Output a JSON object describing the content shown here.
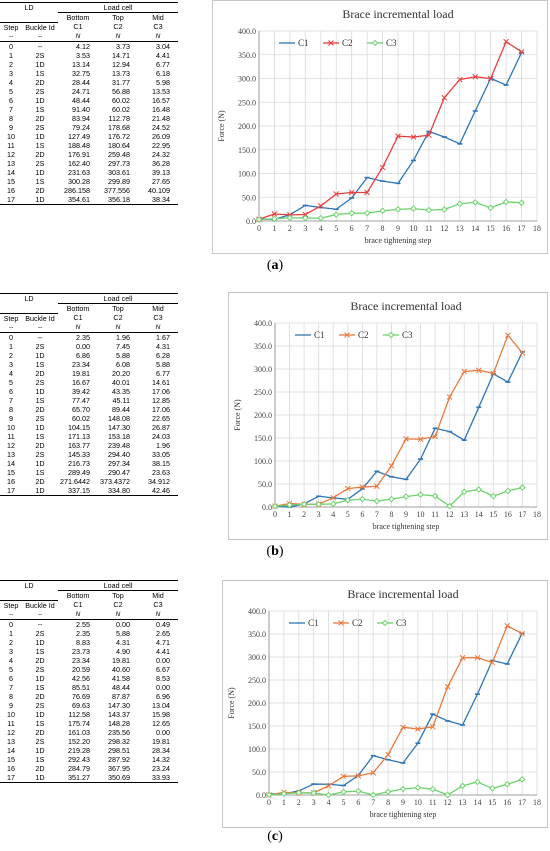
{
  "panels": [
    {
      "caption_open": "(",
      "caption_letter": "a",
      "caption_close": ")",
      "table": {
        "corner_label": "LD",
        "group_label": "Load cell",
        "headers_row1": [
          "",
          "",
          "Bottom",
          "Top",
          "Mid"
        ],
        "headers_row2": [
          "Step",
          "Buckle Id",
          "C1",
          "C2",
          "C3"
        ],
        "units": [
          "--",
          "--",
          "N",
          "N",
          "N"
        ],
        "rows": [
          [
            "0",
            "--",
            "4.12",
            "3.73",
            "3.04"
          ],
          [
            "1",
            "2S",
            "3.53",
            "14.71",
            "4.41"
          ],
          [
            "2",
            "1D",
            "13.14",
            "12.94",
            "6.77"
          ],
          [
            "3",
            "1S",
            "32.75",
            "13.73",
            "6.18"
          ],
          [
            "4",
            "2D",
            "28.44",
            "31.77",
            "5.98"
          ],
          [
            "5",
            "2S",
            "24.71",
            "56.88",
            "13.53"
          ],
          [
            "6",
            "1D",
            "48.44",
            "60.02",
            "16.57"
          ],
          [
            "7",
            "1S",
            "91.40",
            "60.02",
            "16.48"
          ],
          [
            "8",
            "2D",
            "83.94",
            "112.78",
            "21.48"
          ],
          [
            "9",
            "2S",
            "79.24",
            "178.68",
            "24.52"
          ],
          [
            "10",
            "1D",
            "127.49",
            "176.72",
            "26.09"
          ],
          [
            "11",
            "1S",
            "188.48",
            "180.64",
            "22.95"
          ],
          [
            "12",
            "2D",
            "176.91",
            "259.48",
            "24.32"
          ],
          [
            "13",
            "2S",
            "162.40",
            "297.73",
            "36.28"
          ],
          [
            "14",
            "1D",
            "231.63",
            "303.61",
            "39.13"
          ],
          [
            "15",
            "1S",
            "300.28",
            "299.89",
            "27.65"
          ],
          [
            "16",
            "2D",
            "286.158",
            "377.556",
            "40.109"
          ],
          [
            "17",
            "1D",
            "354.61",
            "356.18",
            "38.34"
          ]
        ]
      },
      "chart_data": {
        "type": "line",
        "title": "Brace incremental load",
        "xlabel": "brace tightening  step",
        "ylabel": "Force (N)",
        "x": [
          0,
          1,
          2,
          3,
          4,
          5,
          6,
          7,
          8,
          9,
          10,
          11,
          12,
          13,
          14,
          15,
          16,
          17
        ],
        "xlim": [
          0,
          18
        ],
        "ylim": [
          0,
          400
        ],
        "yticks": [
          "0.0",
          "50.0",
          "100.0",
          "150.0",
          "200.0",
          "250.0",
          "300.0",
          "350.0",
          "400.0"
        ],
        "xticks": [
          "0",
          "1",
          "2",
          "3",
          "4",
          "5",
          "6",
          "7",
          "8",
          "9",
          "10",
          "11",
          "12",
          "13",
          "14",
          "15",
          "16",
          "17",
          "18"
        ],
        "grid": true,
        "legend_position": "top-left",
        "series": [
          {
            "name": "C1",
            "color": "#2e75b6",
            "marker": "dash",
            "values": [
              4.12,
              3.53,
              13.14,
              32.75,
              28.44,
              24.71,
              48.44,
              91.4,
              83.94,
              79.24,
              127.49,
              188.48,
              176.91,
              162.4,
              231.63,
              300.28,
              286.158,
              354.61
            ]
          },
          {
            "name": "C2",
            "color": "#e83e3e",
            "marker": "x",
            "values": [
              3.73,
              14.71,
              12.94,
              13.73,
              31.77,
              56.88,
              60.02,
              60.02,
              112.78,
              178.68,
              176.72,
              180.64,
              259.48,
              297.73,
              303.61,
              299.89,
              377.556,
              356.18
            ]
          },
          {
            "name": "C3",
            "color": "#6cd46c",
            "marker": "diamond",
            "values": [
              3.04,
              4.41,
              6.77,
              6.18,
              5.98,
              13.53,
              16.57,
              16.48,
              21.48,
              24.52,
              26.09,
              22.95,
              24.32,
              36.28,
              39.13,
              27.65,
              40.109,
              38.34
            ]
          }
        ]
      }
    },
    {
      "caption_open": "(",
      "caption_letter": "b",
      "caption_close": ")",
      "table": {
        "corner_label": "LD",
        "group_label": "Load cell",
        "headers_row1": [
          "",
          "",
          "Bottom",
          "Top",
          "Mid"
        ],
        "headers_row2": [
          "Step",
          "Buckle Id",
          "C1",
          "C2",
          "C3"
        ],
        "units": [
          "--",
          "--",
          "N",
          "N",
          "N"
        ],
        "rows": [
          [
            "0",
            "--",
            "2.35",
            "1.96",
            "1.67"
          ],
          [
            "1",
            "2S",
            "0.00",
            "7.45",
            "4.31"
          ],
          [
            "2",
            "1D",
            "6.86",
            "5.88",
            "6.28"
          ],
          [
            "3",
            "1S",
            "23.34",
            "6.08",
            "5.88"
          ],
          [
            "4",
            "2D",
            "19.81",
            "20.20",
            "6.77"
          ],
          [
            "5",
            "2S",
            "16.67",
            "40.01",
            "14.61"
          ],
          [
            "6",
            "1D",
            "39.42",
            "43.35",
            "17.06"
          ],
          [
            "7",
            "1S",
            "77.47",
            "45.11",
            "12.85"
          ],
          [
            "8",
            "2D",
            "65.70",
            "89.44",
            "17.06"
          ],
          [
            "9",
            "2S",
            "60.02",
            "148.08",
            "22.65"
          ],
          [
            "10",
            "1D",
            "104.15",
            "147.30",
            "26.87"
          ],
          [
            "11",
            "1S",
            "171.13",
            "153.18",
            "24.03"
          ],
          [
            "12",
            "2D",
            "163.77",
            "239.48",
            "1.96"
          ],
          [
            "13",
            "2S",
            "145.33",
            "294.40",
            "33.05"
          ],
          [
            "14",
            "1D",
            "216.73",
            "297.34",
            "38.15"
          ],
          [
            "15",
            "1S",
            "289.49",
            "290.47",
            "23.63"
          ],
          [
            "16",
            "2D",
            "271.6442",
            "373.4372",
            "34.912"
          ],
          [
            "17",
            "1D",
            "337.15",
            "334.80",
            "42.46"
          ]
        ]
      },
      "chart_data": {
        "type": "line",
        "title": "Brace incremental load",
        "xlabel": "brace tightening  step",
        "ylabel": "Force (N)",
        "x": [
          0,
          1,
          2,
          3,
          4,
          5,
          6,
          7,
          8,
          9,
          10,
          11,
          12,
          13,
          14,
          15,
          16,
          17
        ],
        "xlim": [
          0,
          18
        ],
        "ylim": [
          0,
          400
        ],
        "yticks": [
          "0.0",
          "50.0",
          "100.0",
          "150.0",
          "200.0",
          "250.0",
          "300.0",
          "350.0",
          "400.0"
        ],
        "xticks": [
          "0",
          "1",
          "2",
          "3",
          "4",
          "5",
          "6",
          "7",
          "8",
          "9",
          "10",
          "11",
          "12",
          "13",
          "14",
          "15",
          "16",
          "17",
          "18"
        ],
        "grid": true,
        "legend_position": "top-left",
        "series": [
          {
            "name": "C1",
            "color": "#2e75b6",
            "marker": "dash",
            "values": [
              2.35,
              0.0,
              6.86,
              23.34,
              19.81,
              16.67,
              39.42,
              77.47,
              65.7,
              60.02,
              104.15,
              171.13,
              163.77,
              145.33,
              216.73,
              289.49,
              271.6442,
              337.15
            ]
          },
          {
            "name": "C2",
            "color": "#e87a3e",
            "marker": "x",
            "values": [
              1.96,
              7.45,
              5.88,
              6.08,
              20.2,
              40.01,
              43.35,
              45.11,
              89.44,
              148.08,
              147.3,
              153.18,
              239.48,
              294.4,
              297.34,
              290.47,
              373.4372,
              334.8
            ]
          },
          {
            "name": "C3",
            "color": "#6cd46c",
            "marker": "diamond",
            "values": [
              1.67,
              4.31,
              6.28,
              5.88,
              6.77,
              14.61,
              17.06,
              12.85,
              17.06,
              22.65,
              26.87,
              24.03,
              1.96,
              33.05,
              38.15,
              23.63,
              34.912,
              42.46
            ]
          }
        ]
      }
    },
    {
      "caption_open": "(",
      "caption_letter": "c",
      "caption_close": ")",
      "table": {
        "corner_label": "LD",
        "group_label": "Load cell",
        "headers_row1": [
          "",
          "",
          "Bottom",
          "Top",
          "Mid"
        ],
        "headers_row2": [
          "Step",
          "Buckle Id",
          "C1",
          "C2",
          "C3"
        ],
        "units": [
          "--",
          "--",
          "N",
          "N",
          "N"
        ],
        "rows": [
          [
            "0",
            "--",
            "2.55",
            "0.00",
            "0.49"
          ],
          [
            "1",
            "2S",
            "2.35",
            "5.88",
            "2.65"
          ],
          [
            "2",
            "1D",
            "8.83",
            "4.31",
            "4.71"
          ],
          [
            "3",
            "1S",
            "23.73",
            "4.90",
            "4.41"
          ],
          [
            "4",
            "2D",
            "23.34",
            "19.81",
            "0.00"
          ],
          [
            "5",
            "2S",
            "20.59",
            "40.60",
            "6.67"
          ],
          [
            "6",
            "1D",
            "42.56",
            "41.58",
            "8.53"
          ],
          [
            "7",
            "1S",
            "85.51",
            "48.44",
            "0.00"
          ],
          [
            "8",
            "2D",
            "76.69",
            "87.87",
            "6.96"
          ],
          [
            "9",
            "2S",
            "69.63",
            "147.30",
            "13.04"
          ],
          [
            "10",
            "1D",
            "112.58",
            "143.37",
            "15.98"
          ],
          [
            "11",
            "1S",
            "175.74",
            "148.28",
            "12.65"
          ],
          [
            "12",
            "2D",
            "161.03",
            "235.56",
            "0.00"
          ],
          [
            "13",
            "2S",
            "152.20",
            "298.32",
            "19.81"
          ],
          [
            "14",
            "1D",
            "219.28",
            "298.51",
            "28.34"
          ],
          [
            "15",
            "1S",
            "292.43",
            "287.92",
            "14.32"
          ],
          [
            "16",
            "2D",
            "284.79",
            "367.95",
            "23.24"
          ],
          [
            "17",
            "1D",
            "351.27",
            "350.69",
            "33.93"
          ]
        ]
      },
      "chart_data": {
        "type": "line",
        "title": "Brace incremental load",
        "xlabel": "brace tightening  step",
        "ylabel": "Force (N)",
        "x": [
          0,
          1,
          2,
          3,
          4,
          5,
          6,
          7,
          8,
          9,
          10,
          11,
          12,
          13,
          14,
          15,
          16,
          17
        ],
        "xlim": [
          0,
          18
        ],
        "ylim": [
          0,
          400
        ],
        "yticks": [
          "0.0",
          "50.0",
          "100.0",
          "150.0",
          "200.0",
          "250.0",
          "300.0",
          "350.0",
          "400.0"
        ],
        "xticks": [
          "0",
          "1",
          "2",
          "3",
          "4",
          "5",
          "6",
          "7",
          "8",
          "9",
          "10",
          "11",
          "12",
          "13",
          "14",
          "15",
          "16",
          "17",
          "18"
        ],
        "grid": true,
        "legend_position": "top-left",
        "series": [
          {
            "name": "C1",
            "color": "#2e75b6",
            "marker": "dash",
            "values": [
              2.55,
              2.35,
              8.83,
              23.73,
              23.34,
              20.59,
              42.56,
              85.51,
              76.69,
              69.63,
              112.58,
              175.74,
              161.03,
              152.2,
              219.28,
              292.43,
              284.79,
              351.27
            ]
          },
          {
            "name": "C2",
            "color": "#e87a3e",
            "marker": "x",
            "values": [
              0.0,
              5.88,
              4.31,
              4.9,
              19.81,
              40.6,
              41.58,
              48.44,
              87.87,
              147.3,
              143.37,
              148.28,
              235.56,
              298.32,
              298.51,
              287.92,
              367.95,
              350.69
            ]
          },
          {
            "name": "C3",
            "color": "#6cd46c",
            "marker": "diamond",
            "values": [
              0.49,
              2.65,
              4.71,
              4.41,
              0.0,
              6.67,
              8.53,
              0.0,
              6.96,
              13.04,
              15.98,
              12.65,
              0.0,
              19.81,
              28.34,
              14.32,
              23.24,
              33.93
            ]
          }
        ]
      }
    }
  ]
}
